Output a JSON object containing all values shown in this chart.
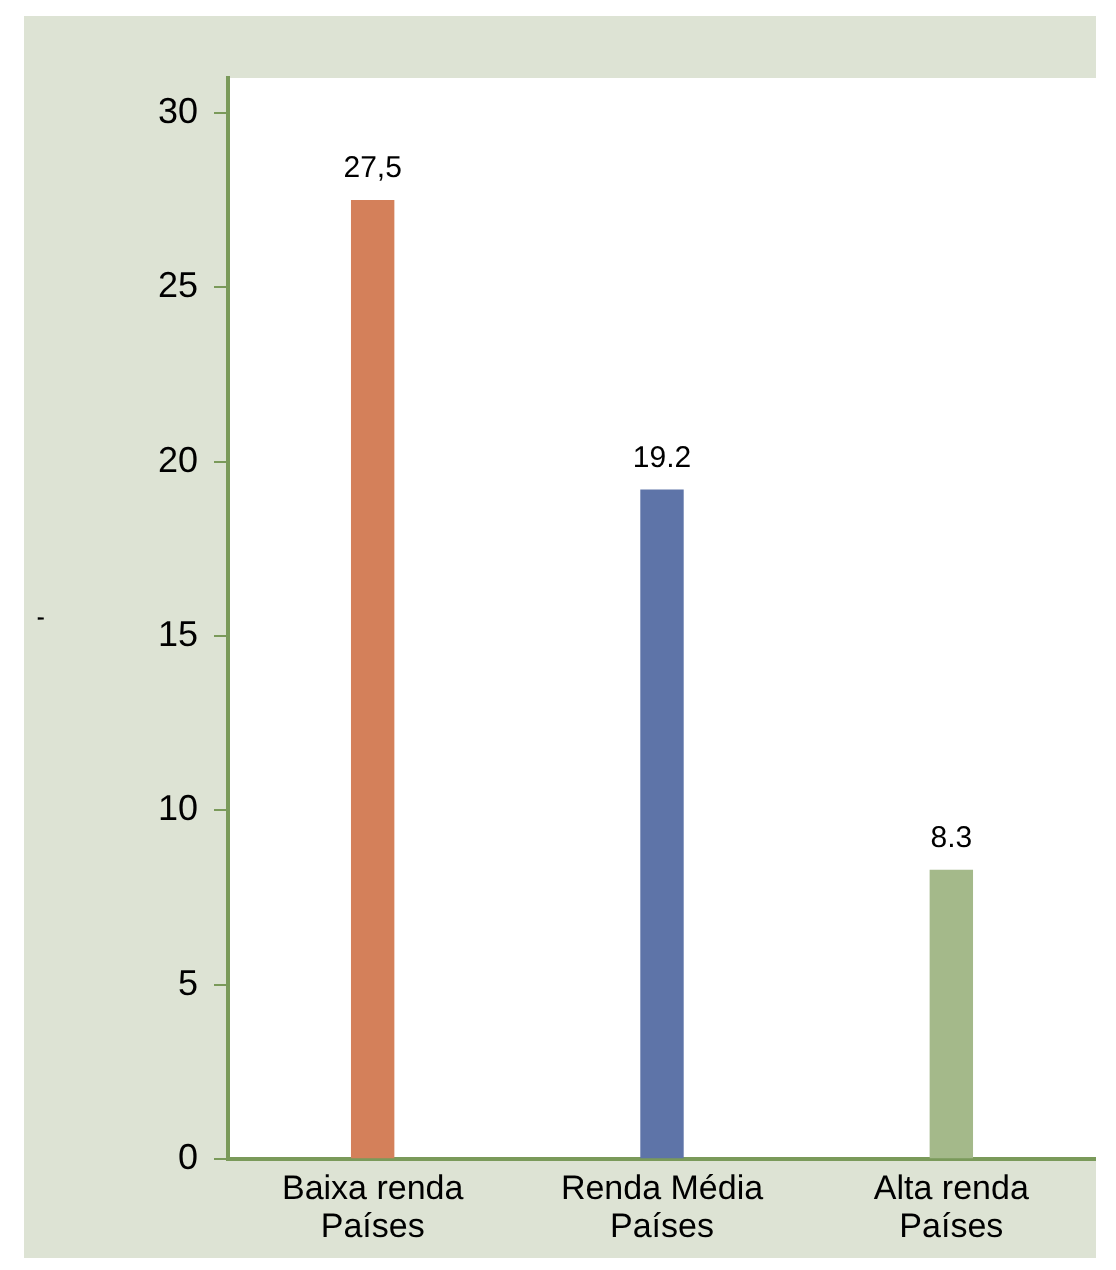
{
  "chart_data": {
    "type": "bar",
    "ylabel": "'",
    "categories": [
      "Baixa renda\nPaíses",
      "Renda Média\nPaíses",
      "Alta renda\nPaíses"
    ],
    "values": [
      27.5,
      19.2,
      8.3
    ],
    "colors": [
      "#d4805a",
      "#5e74a8",
      "#a4b98a"
    ],
    "value_labels": [
      "27,5",
      "19.2",
      "8.3"
    ],
    "ylim": [
      0,
      31
    ],
    "yticks": [
      0,
      5,
      10,
      15,
      20,
      25,
      30
    ],
    "grid": false,
    "legend": false
  }
}
